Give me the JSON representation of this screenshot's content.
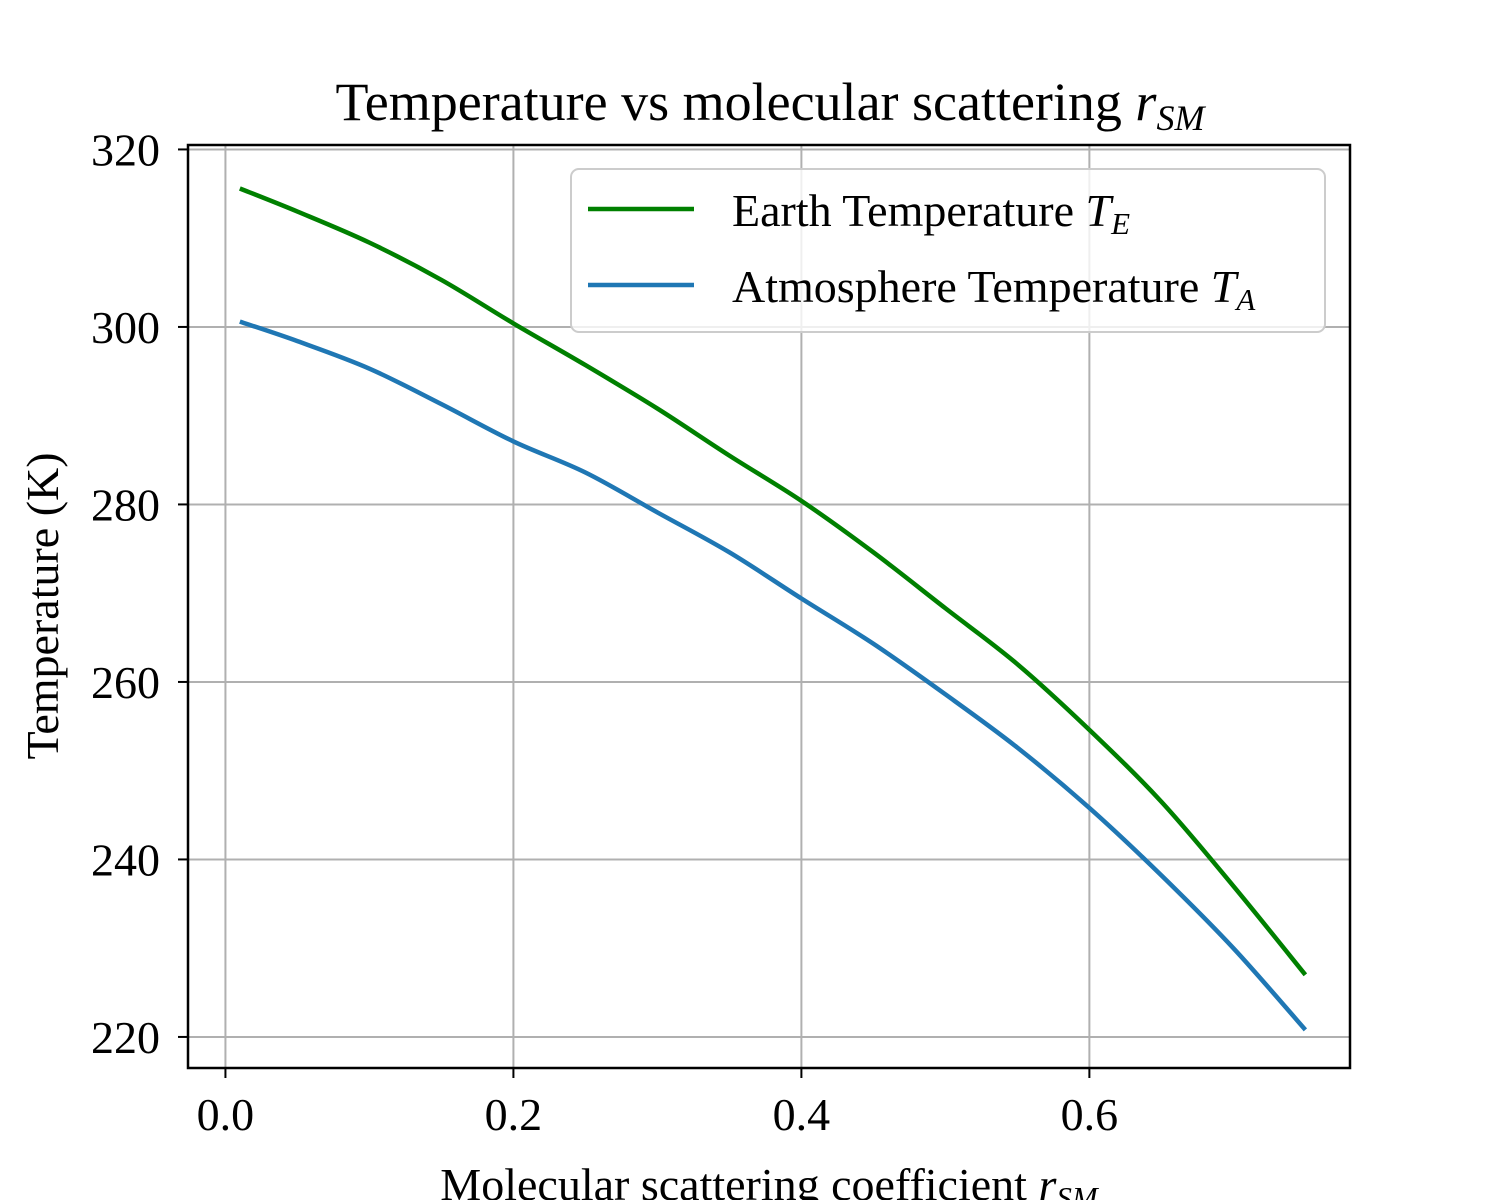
{
  "chart_data": {
    "type": "line",
    "title": {
      "text": "Temperature vs molecular scattering ",
      "var": "r",
      "sub": "SM"
    },
    "xlabel": {
      "text": "Molecular scattering coefficient ",
      "var": "r",
      "sub": "SM"
    },
    "ylabel": "Temperature (K)",
    "xlim": [
      -0.026,
      0.781
    ],
    "ylim": [
      216.5,
      320.5
    ],
    "xticks": [
      0.0,
      0.2,
      0.4,
      0.6
    ],
    "xtick_labels": [
      "0.0",
      "0.2",
      "0.4",
      "0.6"
    ],
    "yticks": [
      220,
      240,
      260,
      280,
      300,
      320
    ],
    "ytick_labels": [
      "220",
      "240",
      "260",
      "280",
      "300",
      "320"
    ],
    "grid": true,
    "legend_position": "top-right",
    "series": [
      {
        "name": {
          "text": "Earth Temperature ",
          "var": "T",
          "sub": "E"
        },
        "color": "#008000",
        "x": [
          0.01,
          0.05,
          0.1,
          0.15,
          0.2,
          0.25,
          0.3,
          0.35,
          0.4,
          0.45,
          0.5,
          0.55,
          0.6,
          0.65,
          0.7,
          0.75
        ],
        "y": [
          315.6,
          313.0,
          309.5,
          305.3,
          300.4,
          295.7,
          290.8,
          285.5,
          280.4,
          274.6,
          268.3,
          262.0,
          254.6,
          246.5,
          237.0,
          227.0
        ]
      },
      {
        "name": {
          "text": "Atmosphere Temperature ",
          "var": "T",
          "sub": "A"
        },
        "color": "#1f77b4",
        "x": [
          0.01,
          0.05,
          0.1,
          0.15,
          0.2,
          0.25,
          0.3,
          0.35,
          0.4,
          0.45,
          0.5,
          0.55,
          0.6,
          0.65,
          0.7,
          0.75
        ],
        "y": [
          300.6,
          298.4,
          295.3,
          291.3,
          287.1,
          283.6,
          279.1,
          274.6,
          269.4,
          264.3,
          258.6,
          252.6,
          245.8,
          238.2,
          230.0,
          220.8
        ]
      }
    ]
  }
}
